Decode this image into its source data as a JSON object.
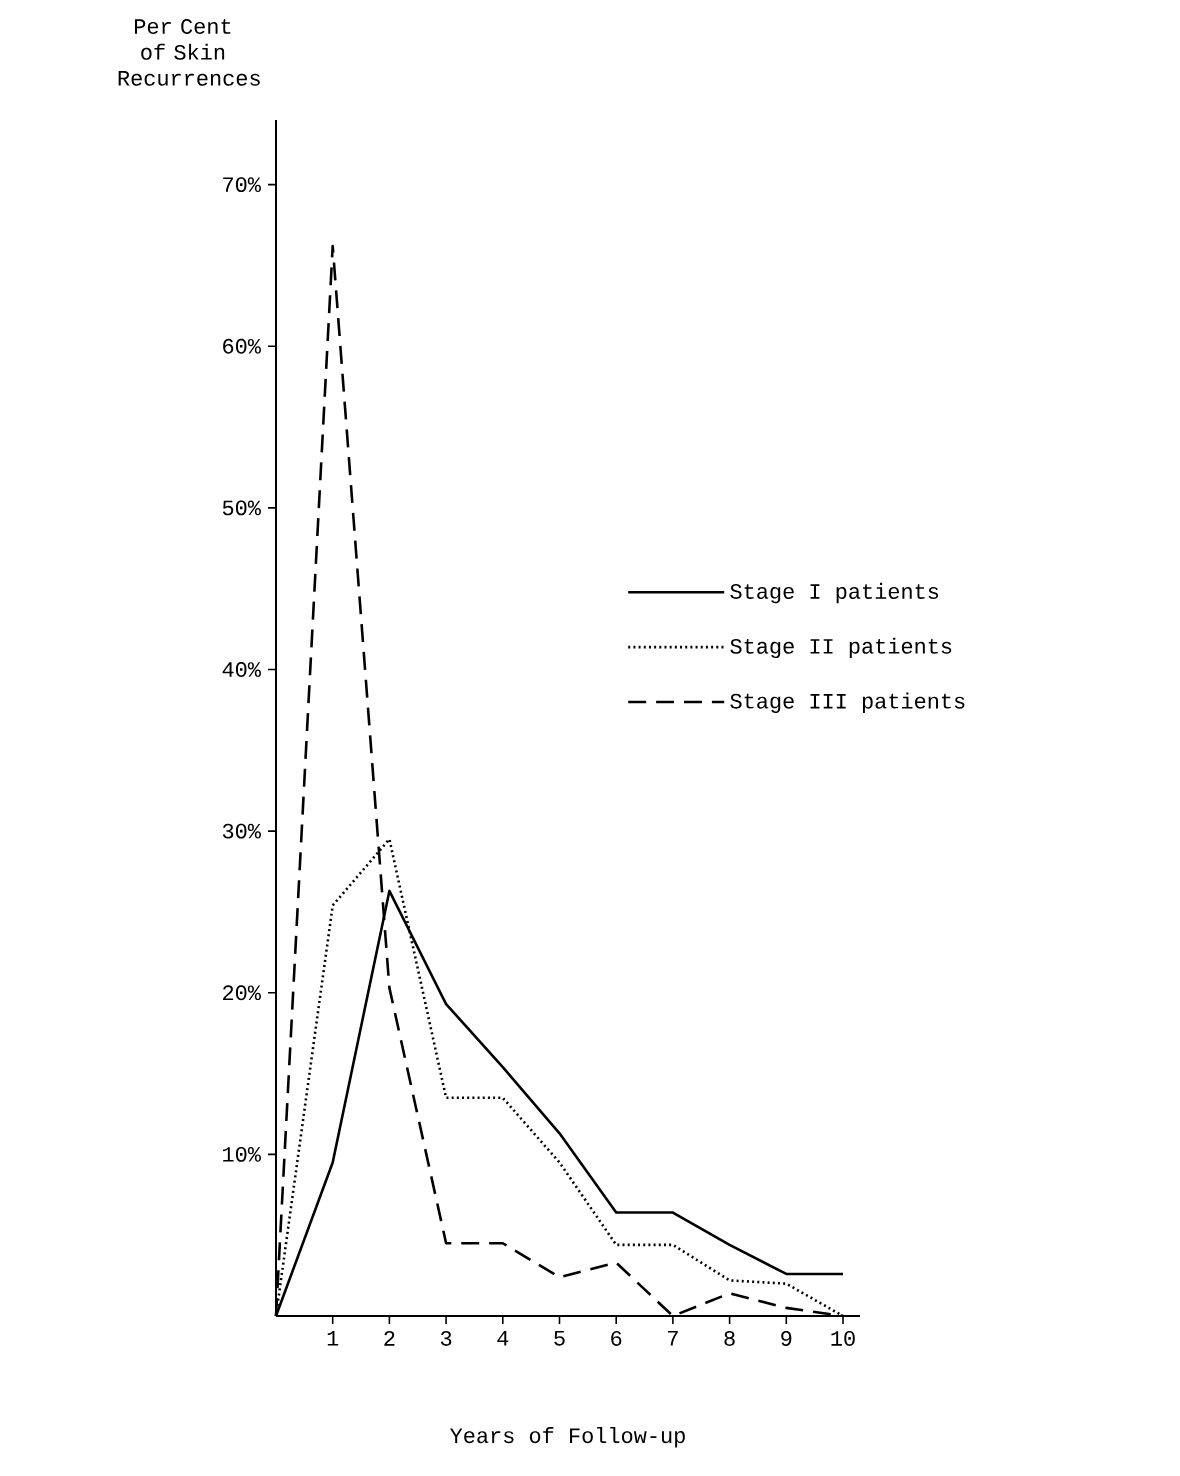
{
  "chart_data": {
    "type": "line",
    "ylabel": "Per Cent of Skin Recurrences",
    "xlabel": "Years of Follow-up",
    "x": [
      0,
      1,
      2,
      3,
      4,
      5,
      6,
      7,
      8,
      9,
      10
    ],
    "series": [
      {
        "name": "Stage I patients",
        "color": "#000000",
        "line_style": "solid",
        "values": [
          0,
          9.5,
          26.3,
          19.3,
          15.4,
          11.3,
          6.4,
          6.4,
          4.4,
          2.6,
          2.6
        ]
      },
      {
        "name": "Stage II patients",
        "color": "#000000",
        "line_style": "dotted",
        "values": [
          0,
          25.4,
          29.5,
          13.5,
          13.5,
          9.5,
          4.4,
          4.4,
          2.2,
          2.0,
          0
        ]
      },
      {
        "name": "Stage III patients",
        "color": "#000000",
        "line_style": "dashed",
        "values": [
          0,
          66.2,
          20.3,
          4.5,
          4.5,
          2.4,
          3.3,
          0,
          1.4,
          0.5,
          0
        ]
      }
    ],
    "xlim": [
      0,
      10.3
    ],
    "ylim": [
      0,
      74
    ],
    "xticks": [
      1,
      2,
      3,
      4,
      5,
      6,
      7,
      8,
      9,
      10
    ],
    "yticks": [
      {
        "value": 10,
        "label": "10%"
      },
      {
        "value": 20,
        "label": "20%"
      },
      {
        "value": 30,
        "label": "30%"
      },
      {
        "value": 40,
        "label": "40%"
      },
      {
        "value": 50,
        "label": "50%"
      },
      {
        "value": 60,
        "label": "60%"
      },
      {
        "value": 70,
        "label": "70%"
      }
    ],
    "grid": false,
    "legend": "right",
    "marker": "none"
  }
}
